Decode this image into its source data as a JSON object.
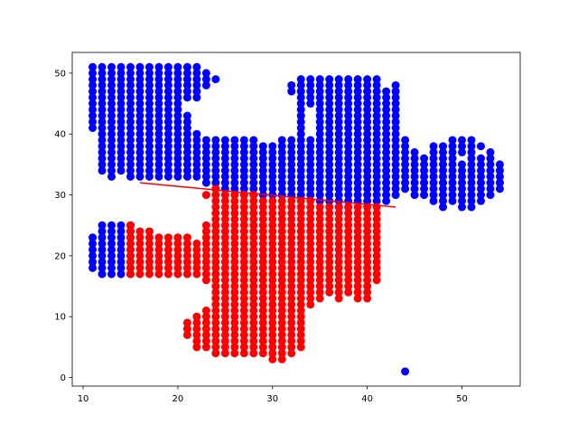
{
  "chart_data": {
    "type": "scatter",
    "title": "",
    "xlabel": "",
    "ylabel": "",
    "xlim": [
      8.85,
      56.15
    ],
    "ylim": [
      -1.4,
      53.4
    ],
    "x_ticks": [
      10,
      20,
      30,
      40,
      50
    ],
    "y_ticks": [
      0,
      10,
      20,
      30,
      40,
      50
    ],
    "grid": false,
    "legend": "none",
    "series": [
      {
        "color": "#0000ff",
        "marker": "circle",
        "columns": [
          {
            "x": 11,
            "ranges": [
              [
                41,
                51
              ],
              [
                18,
                23
              ]
            ]
          },
          {
            "x": 12,
            "ranges": [
              [
                34,
                51
              ],
              [
                17,
                25
              ]
            ]
          },
          {
            "x": 13,
            "ranges": [
              [
                33,
                51
              ],
              [
                17,
                25
              ]
            ]
          },
          {
            "x": 14,
            "ranges": [
              [
                34,
                51
              ],
              [
                17,
                25
              ]
            ]
          },
          {
            "x": 15,
            "ranges": [
              [
                33,
                51
              ],
              [
                17,
                25
              ]
            ]
          },
          {
            "x": 16,
            "ranges": [
              [
                33,
                51
              ]
            ]
          },
          {
            "x": 17,
            "ranges": [
              [
                33,
                51
              ]
            ]
          },
          {
            "x": 18,
            "ranges": [
              [
                33,
                51
              ]
            ]
          },
          {
            "x": 19,
            "ranges": [
              [
                33,
                51
              ]
            ]
          },
          {
            "x": 20,
            "ranges": [
              [
                33,
                51
              ]
            ]
          },
          {
            "x": 21,
            "ranges": [
              [
                33,
                43
              ],
              [
                46,
                51
              ]
            ]
          },
          {
            "x": 22,
            "ranges": [
              [
                33,
                40
              ],
              [
                46,
                51
              ]
            ]
          },
          {
            "x": 23,
            "ranges": [
              [
                32,
                39
              ],
              [
                48,
                50
              ]
            ]
          },
          {
            "x": 24,
            "ranges": [
              [
                31,
                39
              ],
              [
                49,
                49
              ]
            ]
          },
          {
            "x": 25,
            "ranges": [
              [
                31,
                39
              ]
            ]
          },
          {
            "x": 26,
            "ranges": [
              [
                31,
                39
              ]
            ]
          },
          {
            "x": 27,
            "ranges": [
              [
                31,
                39
              ]
            ]
          },
          {
            "x": 28,
            "ranges": [
              [
                30,
                39
              ]
            ]
          },
          {
            "x": 29,
            "ranges": [
              [
                30,
                38
              ]
            ]
          },
          {
            "x": 30,
            "ranges": [
              [
                30,
                38
              ]
            ]
          },
          {
            "x": 31,
            "ranges": [
              [
                30,
                39
              ]
            ]
          },
          {
            "x": 32,
            "ranges": [
              [
                30,
                39
              ],
              [
                47,
                48
              ]
            ]
          },
          {
            "x": 33,
            "ranges": [
              [
                30,
                49
              ]
            ]
          },
          {
            "x": 34,
            "ranges": [
              [
                30,
                39
              ],
              [
                45,
                49
              ]
            ]
          },
          {
            "x": 35,
            "ranges": [
              [
                29,
                49
              ]
            ]
          },
          {
            "x": 36,
            "ranges": [
              [
                29,
                49
              ]
            ]
          },
          {
            "x": 37,
            "ranges": [
              [
                28,
                49
              ]
            ]
          },
          {
            "x": 38,
            "ranges": [
              [
                28,
                49
              ]
            ]
          },
          {
            "x": 39,
            "ranges": [
              [
                29,
                49
              ]
            ]
          },
          {
            "x": 40,
            "ranges": [
              [
                29,
                49
              ]
            ]
          },
          {
            "x": 41,
            "ranges": [
              [
                29,
                49
              ]
            ]
          },
          {
            "x": 42,
            "ranges": [
              [
                29,
                47
              ]
            ]
          },
          {
            "x": 43,
            "ranges": [
              [
                30,
                48
              ]
            ]
          },
          {
            "x": 44,
            "ranges": [
              [
                31,
                39
              ],
              [
                1,
                1
              ]
            ]
          },
          {
            "x": 45,
            "ranges": [
              [
                30,
                37
              ]
            ]
          },
          {
            "x": 46,
            "ranges": [
              [
                30,
                36
              ]
            ]
          },
          {
            "x": 47,
            "ranges": [
              [
                29,
                38
              ]
            ]
          },
          {
            "x": 48,
            "ranges": [
              [
                28,
                38
              ]
            ]
          },
          {
            "x": 49,
            "ranges": [
              [
                29,
                39
              ]
            ]
          },
          {
            "x": 50,
            "ranges": [
              [
                28,
                35
              ],
              [
                37,
                39
              ]
            ]
          },
          {
            "x": 51,
            "ranges": [
              [
                28,
                39
              ]
            ]
          },
          {
            "x": 52,
            "ranges": [
              [
                29,
                36
              ],
              [
                38,
                38
              ]
            ]
          },
          {
            "x": 53,
            "ranges": [
              [
                30,
                37
              ]
            ]
          },
          {
            "x": 54,
            "ranges": [
              [
                31,
                35
              ]
            ]
          }
        ]
      },
      {
        "color": "#ff0000",
        "marker": "circle",
        "columns": [
          {
            "x": 15,
            "ranges": [
              [
                17,
                25
              ]
            ]
          },
          {
            "x": 16,
            "ranges": [
              [
                17,
                24
              ]
            ]
          },
          {
            "x": 17,
            "ranges": [
              [
                17,
                24
              ]
            ]
          },
          {
            "x": 18,
            "ranges": [
              [
                17,
                23
              ]
            ]
          },
          {
            "x": 19,
            "ranges": [
              [
                17,
                23
              ]
            ]
          },
          {
            "x": 20,
            "ranges": [
              [
                17,
                23
              ]
            ]
          },
          {
            "x": 21,
            "ranges": [
              [
                17,
                23
              ],
              [
                7,
                9
              ]
            ]
          },
          {
            "x": 22,
            "ranges": [
              [
                17,
                22
              ],
              [
                5,
                10
              ]
            ]
          },
          {
            "x": 23,
            "ranges": [
              [
                16,
                25
              ],
              [
                5,
                11
              ],
              [
                30,
                30
              ]
            ]
          },
          {
            "x": 24,
            "ranges": [
              [
                4,
                31
              ]
            ]
          },
          {
            "x": 25,
            "ranges": [
              [
                4,
                30
              ]
            ]
          },
          {
            "x": 26,
            "ranges": [
              [
                4,
                30
              ]
            ]
          },
          {
            "x": 27,
            "ranges": [
              [
                4,
                30
              ]
            ]
          },
          {
            "x": 28,
            "ranges": [
              [
                4,
                30
              ]
            ]
          },
          {
            "x": 29,
            "ranges": [
              [
                4,
                29
              ]
            ]
          },
          {
            "x": 30,
            "ranges": [
              [
                3,
                29
              ]
            ]
          },
          {
            "x": 31,
            "ranges": [
              [
                3,
                29
              ]
            ]
          },
          {
            "x": 32,
            "ranges": [
              [
                4,
                29
              ]
            ]
          },
          {
            "x": 33,
            "ranges": [
              [
                5,
                29
              ]
            ]
          },
          {
            "x": 34,
            "ranges": [
              [
                12,
                29
              ]
            ]
          },
          {
            "x": 35,
            "ranges": [
              [
                13,
                28
              ]
            ]
          },
          {
            "x": 36,
            "ranges": [
              [
                14,
                28
              ]
            ]
          },
          {
            "x": 37,
            "ranges": [
              [
                13,
                28
              ]
            ]
          },
          {
            "x": 38,
            "ranges": [
              [
                14,
                28
              ]
            ]
          },
          {
            "x": 39,
            "ranges": [
              [
                13,
                28
              ]
            ]
          },
          {
            "x": 40,
            "ranges": [
              [
                13,
                28
              ]
            ]
          },
          {
            "x": 41,
            "ranges": [
              [
                16,
                28
              ]
            ]
          }
        ]
      }
    ],
    "line": {
      "color": "#ff0000",
      "x": [
        16,
        43
      ],
      "y": [
        32,
        28
      ]
    }
  }
}
